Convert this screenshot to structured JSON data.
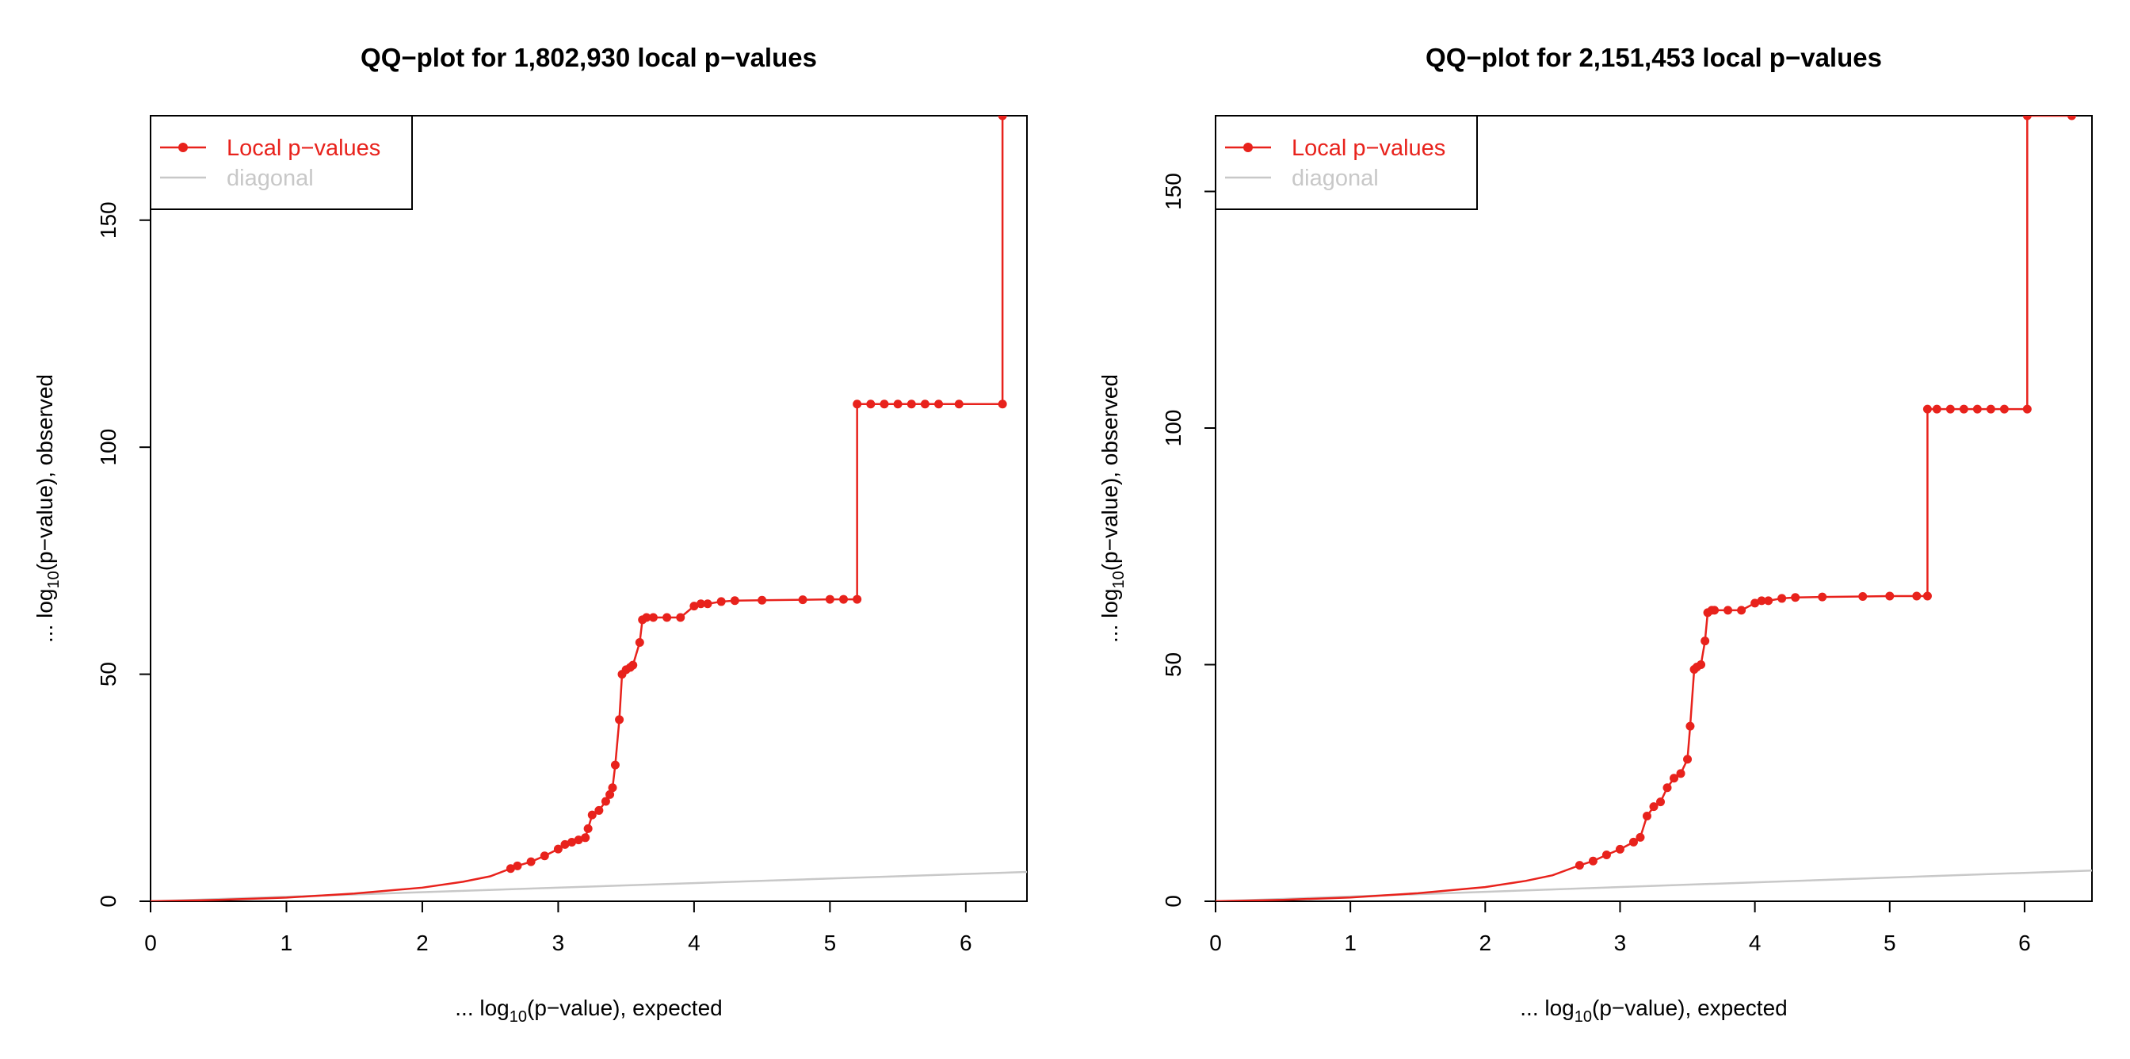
{
  "chart_data": [
    {
      "type": "line",
      "title": "QQ−plot for 1,802,930 local p−values",
      "xlabel": {
        "prefix": "... log",
        "sub": "10",
        "suffix": "(p−value), expected"
      },
      "ylabel": {
        "prefix": "... log",
        "sub": "10",
        "suffix": "(p−value), observed"
      },
      "xlim": [
        0,
        6.45
      ],
      "ylim": [
        0,
        173
      ],
      "xticks": [
        0,
        1,
        2,
        3,
        4,
        5,
        6
      ],
      "yticks": [
        0,
        50,
        100,
        150
      ],
      "legend": {
        "position": "top-left",
        "items": [
          {
            "label": "Local p−values",
            "color": "#e8221c"
          },
          {
            "label": "diagonal",
            "color": "#c8c8c8"
          }
        ]
      },
      "series": [
        {
          "name": "Local p−values",
          "color": "#e8221c",
          "x": [
            0,
            0.5,
            1.0,
            1.5,
            2.0,
            2.3,
            2.5,
            2.65,
            2.7,
            2.8,
            2.9,
            3.0,
            3.05,
            3.1,
            3.15,
            3.2,
            3.22,
            3.25,
            3.3,
            3.35,
            3.38,
            3.4,
            3.42,
            3.45,
            3.47,
            3.5,
            3.53,
            3.55,
            3.6,
            3.62,
            3.65,
            3.7,
            3.8,
            3.9,
            4.0,
            4.05,
            4.1,
            4.2,
            4.3,
            4.5,
            4.8,
            5.0,
            5.1,
            5.2,
            5.2,
            5.3,
            5.4,
            5.5,
            5.6,
            5.7,
            5.8,
            5.95,
            6.27,
            6.27
          ],
          "y": [
            0,
            0.3,
            0.8,
            1.7,
            3.0,
            4.3,
            5.5,
            7.2,
            7.8,
            8.7,
            10.0,
            11.5,
            12.5,
            13.0,
            13.5,
            14.0,
            16.0,
            19.0,
            20.0,
            22.0,
            23.5,
            25.0,
            30.0,
            40.0,
            50.0,
            51.0,
            51.5,
            52.0,
            57.0,
            62.0,
            62.5,
            62.5,
            62.5,
            62.5,
            65.0,
            65.5,
            65.5,
            66.0,
            66.2,
            66.3,
            66.4,
            66.5,
            66.5,
            66.5,
            109.5,
            109.5,
            109.5,
            109.5,
            109.5,
            109.5,
            109.5,
            109.5,
            109.5,
            173
          ]
        },
        {
          "name": "diagonal",
          "color": "#c8c8c8",
          "x": [
            0,
            6.45
          ],
          "y": [
            0,
            6.45
          ]
        }
      ]
    },
    {
      "type": "line",
      "title": "QQ−plot for 2,151,453 local p−values",
      "xlabel": {
        "prefix": "... log",
        "sub": "10",
        "suffix": "(p−value), expected"
      },
      "ylabel": {
        "prefix": "... log",
        "sub": "10",
        "suffix": "(p−value), observed"
      },
      "xlim": [
        0,
        6.5
      ],
      "ylim": [
        0,
        166
      ],
      "xticks": [
        0,
        1,
        2,
        3,
        4,
        5,
        6
      ],
      "yticks": [
        0,
        50,
        100,
        150
      ],
      "legend": {
        "position": "top-left",
        "items": [
          {
            "label": "Local p−values",
            "color": "#e8221c"
          },
          {
            "label": "diagonal",
            "color": "#c8c8c8"
          }
        ]
      },
      "series": [
        {
          "name": "Local p−values",
          "color": "#e8221c",
          "x": [
            0,
            0.5,
            1.0,
            1.5,
            2.0,
            2.3,
            2.5,
            2.7,
            2.8,
            2.9,
            3.0,
            3.1,
            3.15,
            3.2,
            3.25,
            3.3,
            3.35,
            3.4,
            3.45,
            3.5,
            3.52,
            3.55,
            3.57,
            3.6,
            3.63,
            3.65,
            3.68,
            3.7,
            3.8,
            3.9,
            4.0,
            4.05,
            4.1,
            4.2,
            4.3,
            4.5,
            4.8,
            5.0,
            5.2,
            5.28,
            5.28,
            5.35,
            5.45,
            5.55,
            5.65,
            5.75,
            5.85,
            6.02,
            6.02,
            6.35
          ],
          "y": [
            0,
            0.3,
            0.8,
            1.7,
            3.0,
            4.3,
            5.5,
            7.6,
            8.5,
            9.8,
            11.0,
            12.5,
            13.5,
            18.0,
            20.0,
            21.0,
            24.0,
            26.0,
            27.0,
            30.0,
            37.0,
            49.0,
            49.5,
            50.0,
            55.0,
            61.0,
            61.5,
            61.5,
            61.5,
            61.5,
            63.0,
            63.5,
            63.5,
            64.0,
            64.2,
            64.3,
            64.4,
            64.5,
            64.5,
            64.5,
            104.0,
            104.0,
            104.0,
            104.0,
            104.0,
            104.0,
            104.0,
            104.0,
            166,
            166
          ]
        },
        {
          "name": "diagonal",
          "color": "#c8c8c8",
          "x": [
            0,
            6.5
          ],
          "y": [
            0,
            6.5
          ]
        }
      ]
    }
  ]
}
